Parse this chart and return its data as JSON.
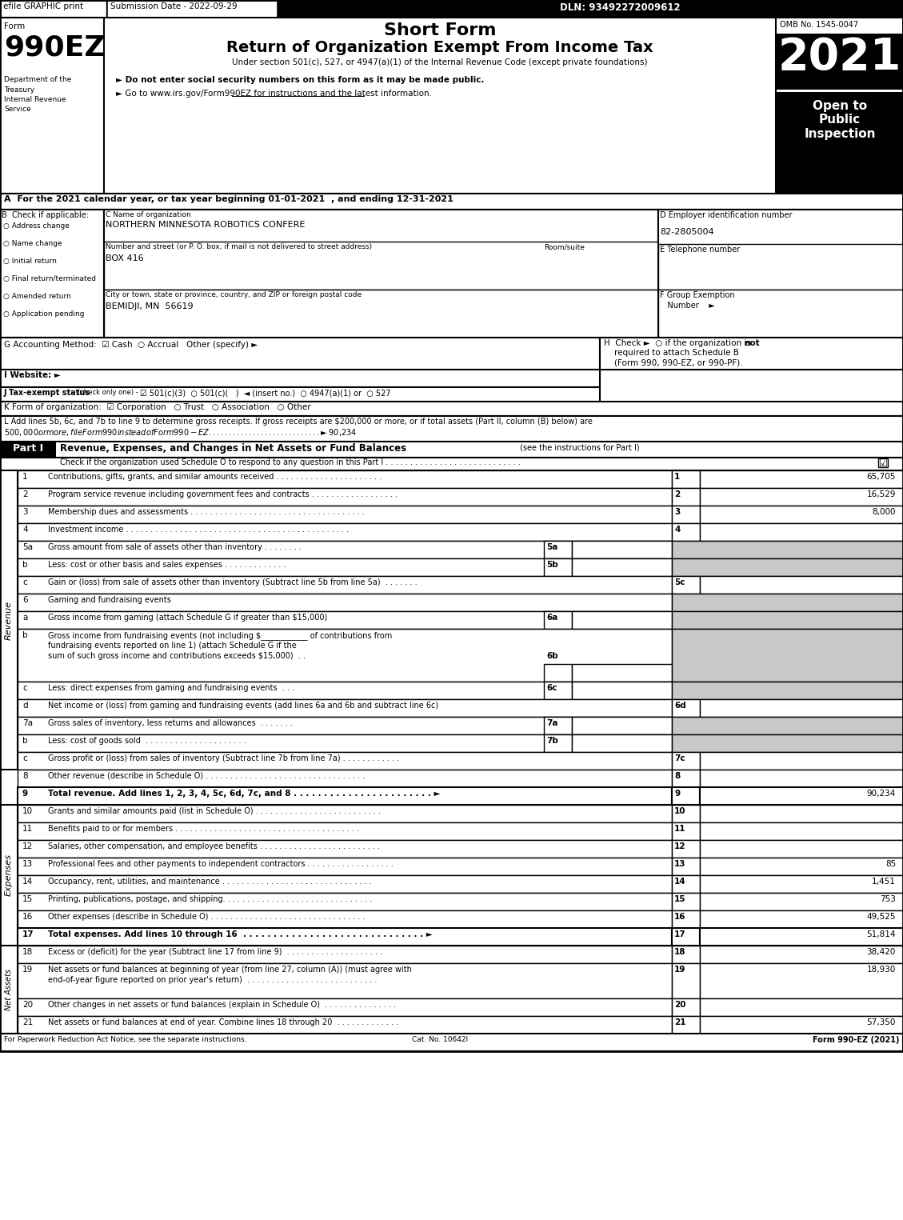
{
  "title_short": "Short Form",
  "title_main": "Return of Organization Exempt From Income Tax",
  "subtitle": "Under section 501(c), 527, or 4947(a)(1) of the Internal Revenue Code (except private foundations)",
  "year": "2021",
  "omb": "OMB No. 1545-0047",
  "efile_text": "efile GRAPHIC print",
  "submission_date": "Submission Date - 2022-09-29",
  "dln": "DLN: 93492272009612",
  "dept1": "Department of the",
  "dept2": "Treasury",
  "dept3": "Internal Revenue",
  "dept4": "Service",
  "bullet1": "► Do not enter social security numbers on this form as it may be made public.",
  "bullet2": "► Go to www.irs.gov/Form990EZ for instructions and the latest information.",
  "open_to": "Open to\nPublic\nInspection",
  "section_A": "A  For the 2021 calendar year, or tax year beginning 01-01-2021  , and ending 12-31-2021",
  "checkboxes_B": [
    "Address change",
    "Name change",
    "Initial return",
    "Final return/terminated",
    "Amended return",
    "Application pending"
  ],
  "org_name": "NORTHERN MINNESOTA ROBOTICS CONFERE",
  "street_label": "Number and street (or P. O. box, if mail is not delivered to street address)",
  "street_value": "BOX 416",
  "room_label": "Room/suite",
  "city_label": "City or town, state or province, country, and ZIP or foreign postal code",
  "city_value": "BEMIDJI, MN  56619",
  "ein": "82-2805004",
  "revenue_rows": [
    {
      "num": "1",
      "label": "Contributions, gifts, grants, and similar amounts received . . . . . . . . . . . . . . . . . . . . . .",
      "line": "1",
      "value": "65,705"
    },
    {
      "num": "2",
      "label": "Program service revenue including government fees and contracts . . . . . . . . . . . . . . . . . .",
      "line": "2",
      "value": "16,529"
    },
    {
      "num": "3",
      "label": "Membership dues and assessments . . . . . . . . . . . . . . . . . . . . . . . . . . . . . . . . . . . .",
      "line": "3",
      "value": "8,000"
    },
    {
      "num": "4",
      "label": "Investment income . . . . . . . . . . . . . . . . . . . . . . . . . . . . . . . . . . . . . . . . . . . . . .",
      "line": "4",
      "value": ""
    }
  ],
  "row_5a_label": "Gross amount from sale of assets other than inventory . . . . . . . .",
  "row_5b_label": "Less: cost or other basis and sales expenses . . . . . . . . . . . . .",
  "row_5c_label": "Gain or (loss) from sale of assets other than inventory (Subtract line 5b from line 5a)  . . . . . . .",
  "row_6a_label": "Gross income from gaming (attach Schedule G if greater than $15,000)",
  "row_6b_line1": "Gross income from fundraising events (not including $____________ of contributions from",
  "row_6b_line2": "fundraising events reported on line 1) (attach Schedule G if the",
  "row_6b_line3": "sum of such gross income and contributions exceeds $15,000)  . .",
  "row_6c_label": "Less: direct expenses from gaming and fundraising events  . . .",
  "row_6d_label": "Net income or (loss) from gaming and fundraising events (add lines 6a and 6b and subtract line 6c)",
  "row_7a_label": "Gross sales of inventory, less returns and allowances  . . . . . . .",
  "row_7b_label": "Less: cost of goods sold  . . . . . . . . . . . . . . . . . . . . .",
  "row_7c_label": "Gross profit or (loss) from sales of inventory (Subtract line 7b from line 7a) . . . . . . . . . . . .",
  "row_8_label": "Other revenue (describe in Schedule O) . . . . . . . . . . . . . . . . . . . . . . . . . . . . . . . . .",
  "row_9_label": "Total revenue. Add lines 1, 2, 3, 4, 5c, 6d, 7c, and 8 . . . . . . . . . . . . . . . . . . . . . . . ►",
  "row_9_value": "90,234",
  "expense_rows": [
    {
      "num": "10",
      "label": "Grants and similar amounts paid (list in Schedule O) . . . . . . . . . . . . . . . . . . . . . . . . . .",
      "line": "10",
      "value": ""
    },
    {
      "num": "11",
      "label": "Benefits paid to or for members . . . . . . . . . . . . . . . . . . . . . . . . . . . . . . . . . . . . . .",
      "line": "11",
      "value": ""
    },
    {
      "num": "12",
      "label": "Salaries, other compensation, and employee benefits . . . . . . . . . . . . . . . . . . . . . . . . .",
      "line": "12",
      "value": ""
    },
    {
      "num": "13",
      "label": "Professional fees and other payments to independent contractors . . . . . . . . . . . . . . . . . .",
      "line": "13",
      "value": "85"
    },
    {
      "num": "14",
      "label": "Occupancy, rent, utilities, and maintenance . . . . . . . . . . . . . . . . . . . . . . . . . . . . . . .",
      "line": "14",
      "value": "1,451"
    },
    {
      "num": "15",
      "label": "Printing, publications, postage, and shipping. . . . . . . . . . . . . . . . . . . . . . . . . . . . . . .",
      "line": "15",
      "value": "753"
    },
    {
      "num": "16",
      "label": "Other expenses (describe in Schedule O) . . . . . . . . . . . . . . . . . . . . . . . . . . . . . . . .",
      "line": "16",
      "value": "49,525"
    }
  ],
  "row_17_label": "Total expenses. Add lines 10 through 16  . . . . . . . . . . . . . . . . . . . . . . . . . . . . . . ►",
  "row_17_value": "51,814",
  "row_18_label": "Excess or (deficit) for the year (Subtract line 17 from line 9)  . . . . . . . . . . . . . . . . . . . .",
  "row_18_value": "38,420",
  "row_19_line1": "Net assets or fund balances at beginning of year (from line 27, column (A)) (must agree with",
  "row_19_line2": "end-of-year figure reported on prior year's return)  . . . . . . . . . . . . . . . . . . . . . . . . . . .",
  "row_19_value": "18,930",
  "row_20_label": "Other changes in net assets or fund balances (explain in Schedule O)  . . . . . . . . . . . . . . .",
  "row_20_value": "",
  "row_21_label": "Net assets or fund balances at end of year. Combine lines 18 through 20  . . . . . . . . . . . . .",
  "row_21_value": "57,350",
  "footer_left": "For Paperwork Reduction Act Notice, see the separate instructions.",
  "footer_cat": "Cat. No. 10642I",
  "footer_right": "Form 990-EZ (2021)",
  "gray_cell": "#c8c8c8"
}
